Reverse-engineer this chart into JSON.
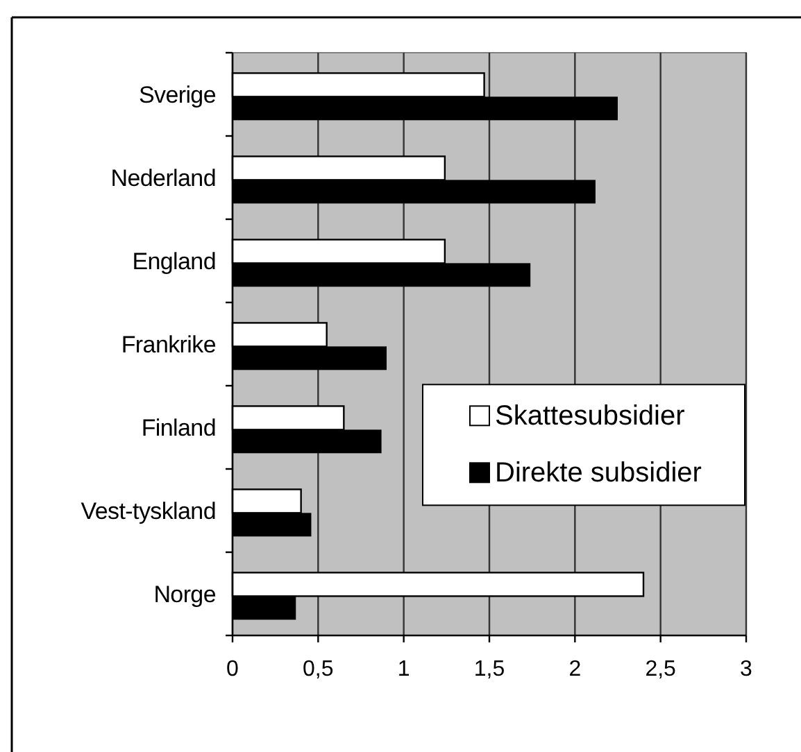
{
  "chart_data": {
    "type": "bar",
    "orientation": "horizontal",
    "categories": [
      "Sverige",
      "Nederland",
      "England",
      "Frankrike",
      "Finland",
      "Vest-tyskland",
      "Norge"
    ],
    "series": [
      {
        "name": "Skattesubsidier",
        "color": "#ffffff",
        "values": [
          1.47,
          1.24,
          1.24,
          0.55,
          0.65,
          0.4,
          2.4
        ]
      },
      {
        "name": "Direkte subsidier",
        "color": "#000000",
        "values": [
          2.25,
          2.12,
          1.74,
          0.9,
          0.87,
          0.46,
          0.37
        ]
      }
    ],
    "xlim": [
      0,
      3
    ],
    "xticks": [
      0,
      {
        "value": 0.5,
        "label": "0,5"
      },
      1,
      {
        "value": 1.5,
        "label": "1,5"
      },
      2,
      {
        "value": 2.5,
        "label": "2,5"
      },
      3
    ],
    "grid": "x",
    "legend": "right"
  }
}
